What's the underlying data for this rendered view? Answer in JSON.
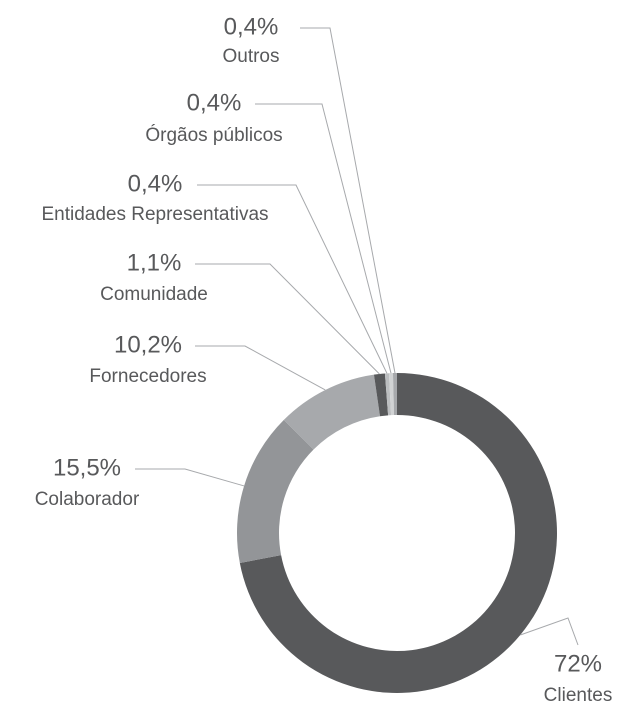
{
  "chart_data": {
    "type": "donut",
    "categories": [
      "Clientes",
      "Colaborador",
      "Fornecedores",
      "Comunidade",
      "Entidades Representativas",
      "Órgãos públicos",
      "Outros"
    ],
    "values": [
      72,
      15.5,
      10.2,
      1.1,
      0.4,
      0.4,
      0.4
    ],
    "value_labels": [
      "72%",
      "15,5%",
      "10,2%",
      "1,1%",
      "0,4%",
      "0,4%",
      "0,4%"
    ],
    "colors": [
      "#58595b",
      "#939598",
      "#a7a9ac",
      "#58595b",
      "#bcbec0",
      "#d1d3d4",
      "#a7a9ac"
    ]
  }
}
